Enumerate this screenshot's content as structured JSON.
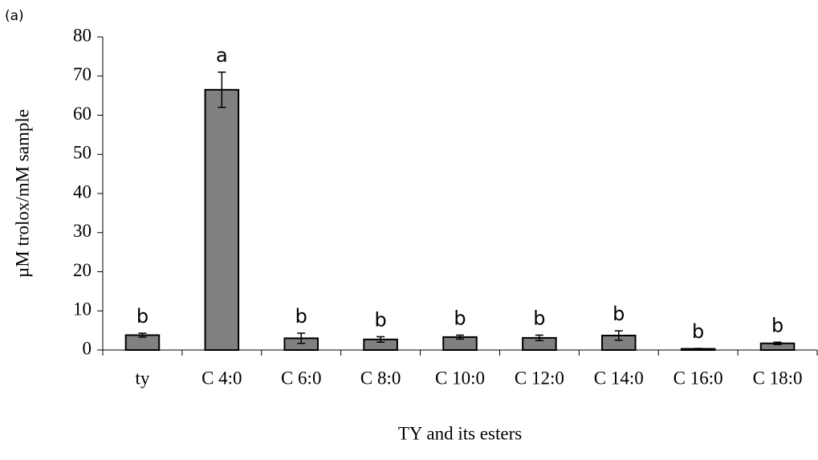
{
  "chart_data": {
    "type": "bar",
    "panel_label": "(a)",
    "ylabel": "µM trolox/mM sample",
    "xlabel": "TY and its esters",
    "categories": [
      "ty",
      "C 4:0",
      "C 6:0",
      "C 8:0",
      "C 10:0",
      "C 12:0",
      "C 14:0",
      "C 16:0",
      "C 18:0"
    ],
    "values": [
      3.8,
      66.5,
      3.0,
      2.7,
      3.3,
      3.1,
      3.7,
      0.3,
      1.7
    ],
    "errors": [
      0.5,
      4.5,
      1.3,
      0.7,
      0.5,
      0.7,
      1.2,
      0.1,
      0.3
    ],
    "letters": [
      "b",
      "a",
      "b",
      "b",
      "b",
      "b",
      "b",
      "b",
      "b"
    ],
    "color": "#808080",
    "ylim": [
      0,
      80
    ],
    "yticks": [
      0,
      10,
      20,
      30,
      40,
      50,
      60,
      70,
      80
    ],
    "grid": false
  }
}
